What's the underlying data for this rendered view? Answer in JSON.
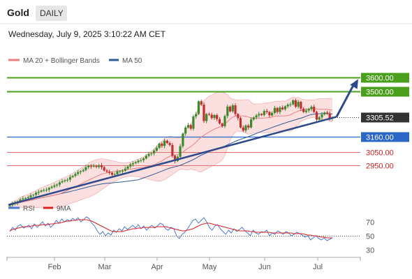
{
  "header": {
    "title": "Gold",
    "timeframe": "DAILY",
    "timestamp": "Wednesday, July 9, 2025 3:10:22 AM CET"
  },
  "colors": {
    "price_up": "#e05a5a",
    "price_down": "#3a7d2c",
    "candle_up": "#3a8a2c",
    "candle_down": "#c03030",
    "ma20": "#f08080",
    "bollinger_fill": "#fbd5d5",
    "ma50": "#2d5b94",
    "trend": "#2d4a8a",
    "resistance": "#4aa01c",
    "support": "#2b67c7",
    "support_red": "#e07070",
    "rsi": "#4a78d4",
    "rsi_ma": "#dd2222"
  },
  "chart_data": [
    {
      "type": "candlestick",
      "title": "Gold",
      "legend": [
        {
          "name": "MA 20 + Bollinger Bands",
          "color": "#f08080"
        },
        {
          "name": "MA 50",
          "color": "#2d5b94"
        }
      ],
      "x_ticks": [
        "Feb",
        "Mar",
        "Apr",
        "May",
        "Jun",
        "Jul"
      ],
      "ylim": [
        2700,
        3680
      ],
      "last_price": "3305.52",
      "levels": [
        {
          "label": "3600.00",
          "value": 3600,
          "style": "resistance"
        },
        {
          "label": "3500.00",
          "value": 3500,
          "style": "resistance"
        },
        {
          "label": "3160.00",
          "value": 3160,
          "style": "support"
        },
        {
          "label": "3050.00",
          "value": 3050,
          "style": "support_red"
        },
        {
          "label": "2950.00",
          "value": 2950,
          "style": "support_red"
        }
      ],
      "trendline": {
        "from": [
          "Jan 2",
          2655
        ],
        "to": [
          "Jul 10",
          3310
        ]
      },
      "projection": {
        "from": [
          "Jul 10",
          3310
        ],
        "to": [
          "Jul 24",
          3590
        ]
      },
      "close_series": [
        2652,
        2665,
        2670,
        2680,
        2695,
        2702,
        2705,
        2712,
        2725,
        2730,
        2745,
        2752,
        2761,
        2765,
        2768,
        2781,
        2789,
        2799,
        2806,
        2822,
        2831,
        2838,
        2842,
        2861,
        2870,
        2885,
        2898,
        2905,
        2914,
        2935,
        2946,
        2940,
        2945,
        2937,
        2949,
        2935,
        2910,
        2902,
        2893,
        2879,
        2883,
        2903,
        2905,
        2908,
        2924,
        2940,
        2956,
        2964,
        2972,
        2983,
        2987,
        3000,
        3019,
        3033,
        3038,
        3058,
        3079,
        3110,
        3093,
        3132,
        3115,
        3100,
        3020,
        2981,
        3012,
        3091,
        3185,
        3230,
        3248,
        3221,
        3312,
        3330,
        3425,
        3400,
        3278,
        3330,
        3325,
        3300,
        3322,
        3292,
        3260,
        3240,
        3315,
        3385,
        3350,
        3395,
        3330,
        3300,
        3230,
        3207,
        3245,
        3230,
        3290,
        3305,
        3320,
        3330,
        3323,
        3353,
        3345,
        3320,
        3338,
        3375,
        3345,
        3378,
        3365,
        3387,
        3400,
        3402,
        3432,
        3385,
        3420,
        3370,
        3345,
        3356,
        3368,
        3384,
        3346,
        3289,
        3305,
        3327,
        3341,
        3335,
        3296,
        3303
      ]
    },
    {
      "type": "line",
      "title": "RSI",
      "series": [
        {
          "name": "RSI",
          "color": "#4a78d4"
        },
        {
          "name": "9MA",
          "color": "#dd2222"
        }
      ],
      "y_ticks": [
        70,
        50,
        30
      ],
      "ylim": [
        20,
        80
      ],
      "rsi_values": [
        56,
        62,
        58,
        64,
        66,
        61,
        63,
        65,
        60,
        67,
        62,
        66,
        70,
        64,
        68,
        62,
        66,
        72,
        68,
        74,
        70,
        73,
        71,
        75,
        72,
        76,
        70,
        73,
        77,
        75,
        68,
        64,
        57,
        52,
        56,
        50,
        54,
        51,
        58,
        55,
        60,
        57,
        63,
        59,
        62,
        65,
        61,
        66,
        60,
        64,
        58,
        62,
        65,
        61,
        64,
        68,
        66,
        60,
        58,
        62,
        60,
        50,
        46,
        52,
        55,
        60,
        66,
        72,
        74,
        68,
        72,
        76,
        70,
        62,
        58,
        64,
        66,
        60,
        56,
        52,
        58,
        54,
        60,
        56,
        59,
        62,
        57,
        54,
        50,
        58,
        54,
        52,
        56,
        55,
        58,
        50,
        54,
        52,
        57,
        55,
        52,
        56,
        54,
        50,
        52,
        55,
        53,
        51,
        48,
        50,
        44,
        47,
        50,
        46,
        44,
        47,
        43,
        45,
        47
      ],
      "ma_values": [
        57,
        59,
        60,
        61,
        62,
        63,
        63,
        63,
        64,
        65,
        65,
        65,
        66,
        66,
        66,
        67,
        67,
        68,
        68,
        69,
        70,
        71,
        71,
        72,
        72,
        73,
        73,
        73,
        73,
        72,
        71,
        69,
        67,
        65,
        63,
        61,
        59,
        57,
        56,
        56,
        56,
        56,
        57,
        58,
        59,
        60,
        60,
        61,
        61,
        62,
        62,
        62,
        62,
        62,
        63,
        63,
        63,
        63,
        62,
        61,
        60,
        59,
        58,
        57,
        57,
        58,
        59,
        60,
        62,
        64,
        66,
        67,
        68,
        68,
        67,
        66,
        65,
        64,
        63,
        62,
        61,
        60,
        59,
        58,
        57,
        57,
        57,
        57,
        56,
        56,
        55,
        55,
        55,
        55,
        55,
        55,
        54,
        54,
        54,
        54,
        54,
        54,
        54,
        54,
        53,
        53,
        53,
        53,
        52,
        51,
        51,
        50,
        50,
        49,
        48,
        48,
        47,
        47,
        47
      ]
    }
  ]
}
